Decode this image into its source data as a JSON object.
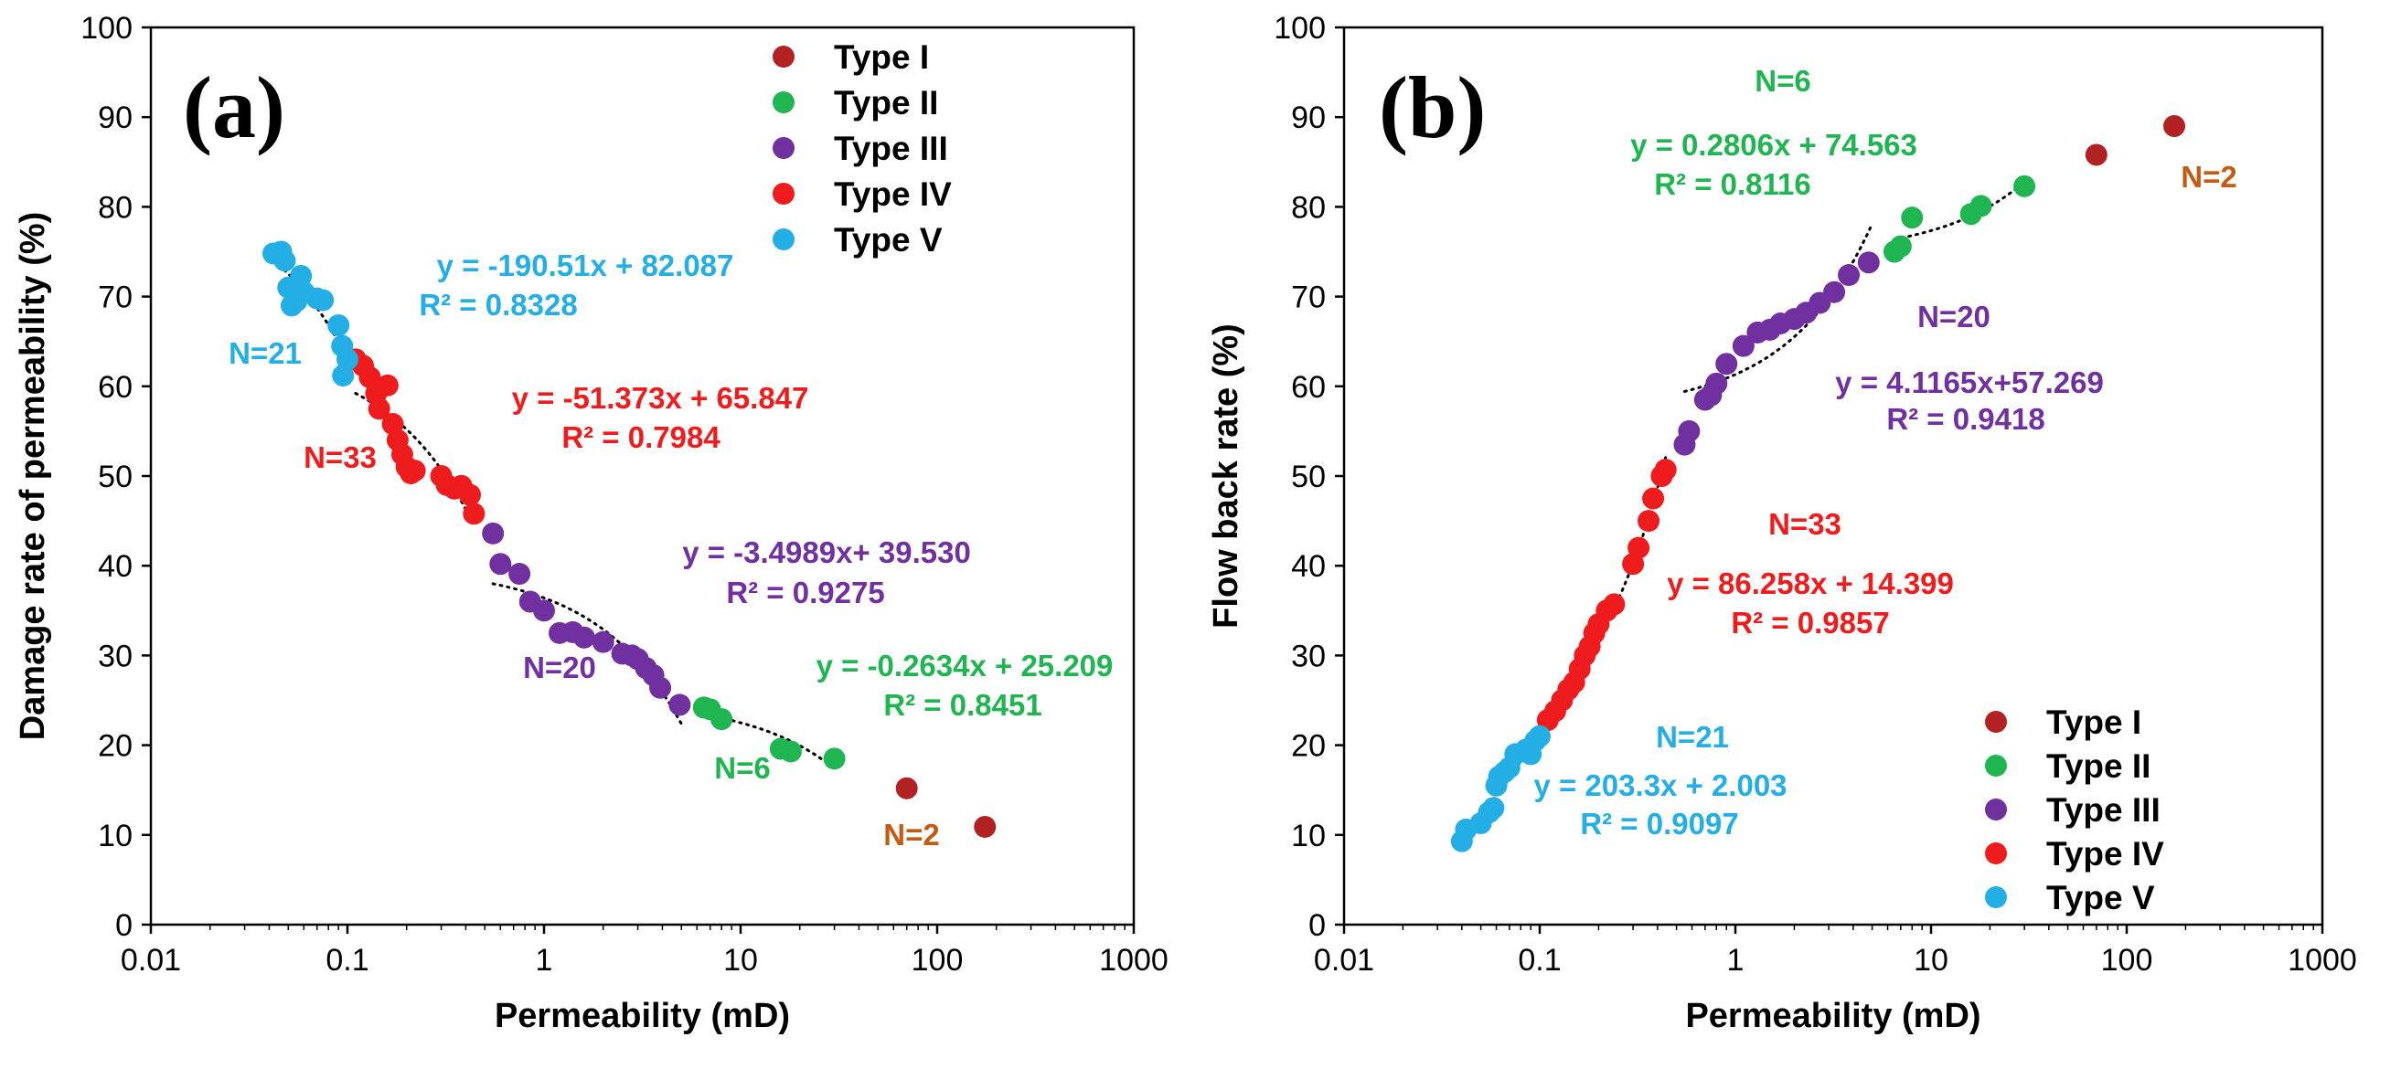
{
  "chart_data": [
    {
      "type": "scatter",
      "panel_label": "(a)",
      "xlabel": "Permeability (mD)",
      "ylabel": "Damage rate of permeability (%)",
      "xscale": "log",
      "xlim": [
        0.01,
        1000
      ],
      "ylim": [
        0,
        100
      ],
      "xticks": [
        0.01,
        0.1,
        1,
        10,
        100,
        1000
      ],
      "xtick_labels": [
        "0.01",
        "0.1",
        "1",
        "10",
        "100",
        "1000"
      ],
      "yticks": [
        0,
        10,
        20,
        30,
        40,
        50,
        60,
        70,
        80,
        90,
        100
      ],
      "ytick_labels": [
        "0",
        "10",
        "20",
        "30",
        "40",
        "50",
        "60",
        "70",
        "80",
        "90",
        "100"
      ],
      "legend_position": "top-right",
      "colors": {
        "Type I": "#b22222",
        "Type II": "#1fb550",
        "Type III": "#7030a0",
        "Type IV": "#ee1c1c",
        "Type V": "#23aee6"
      },
      "series": [
        {
          "name": "Type I",
          "points": [
            [
              70,
              15.2
            ],
            [
              175,
              10.9
            ]
          ]
        },
        {
          "name": "Type II",
          "points": [
            [
              6.5,
              24.2
            ],
            [
              7.0,
              24.0
            ],
            [
              8.0,
              22.9
            ],
            [
              16.0,
              19.6
            ],
            [
              18.0,
              19.3
            ],
            [
              30.0,
              18.5
            ]
          ]
        },
        {
          "name": "Type III",
          "points": [
            [
              0.55,
              43.6
            ],
            [
              0.6,
              40.2
            ],
            [
              0.75,
              39.1
            ],
            [
              0.85,
              36.0
            ],
            [
              1.0,
              35.0
            ],
            [
              1.2,
              32.5
            ],
            [
              1.4,
              32.6
            ],
            [
              1.6,
              32.0
            ],
            [
              2.0,
              31.5
            ],
            [
              2.5,
              30.2
            ],
            [
              2.8,
              30.0
            ],
            [
              3.0,
              29.6
            ],
            [
              3.3,
              28.6
            ],
            [
              3.6,
              27.8
            ],
            [
              3.9,
              26.4
            ],
            [
              4.9,
              24.5
            ]
          ]
        },
        {
          "name": "Type IV",
          "points": [
            [
              0.11,
              63.0
            ],
            [
              0.12,
              62.3
            ],
            [
              0.13,
              61.0
            ],
            [
              0.14,
              59.2
            ],
            [
              0.145,
              57.5
            ],
            [
              0.16,
              60.1
            ],
            [
              0.17,
              55.8
            ],
            [
              0.18,
              54.0
            ],
            [
              0.19,
              52.4
            ],
            [
              0.2,
              51.0
            ],
            [
              0.21,
              50.3
            ],
            [
              0.22,
              50.6
            ],
            [
              0.3,
              50.0
            ],
            [
              0.32,
              49.0
            ],
            [
              0.35,
              48.6
            ],
            [
              0.38,
              48.9
            ],
            [
              0.42,
              47.9
            ],
            [
              0.44,
              45.8
            ]
          ]
        },
        {
          "name": "Type V",
          "points": [
            [
              0.042,
              74.8
            ],
            [
              0.046,
              75.0
            ],
            [
              0.048,
              74.0
            ],
            [
              0.05,
              71.0
            ],
            [
              0.052,
              69.0
            ],
            [
              0.055,
              69.5
            ],
            [
              0.058,
              72.3
            ],
            [
              0.06,
              70.5
            ],
            [
              0.07,
              69.8
            ],
            [
              0.075,
              69.6
            ],
            [
              0.09,
              66.8
            ],
            [
              0.094,
              64.5
            ],
            [
              0.1,
              63.0
            ],
            [
              0.095,
              61.2
            ]
          ]
        }
      ],
      "trendlines": [
        {
          "series": "Type V",
          "equation": "y = -190.51x + 82.087",
          "r2": "R² = 0.8328",
          "n": "N=21",
          "x_range": [
            0.042,
            0.1
          ]
        },
        {
          "series": "Type IV",
          "equation": "y = -51.373x + 65.847",
          "r2": "R² = 0.7984",
          "n": "N=33",
          "x_range": [
            0.11,
            0.44
          ]
        },
        {
          "series": "Type III",
          "equation": "y = -3.4989x+ 39.530",
          "r2": "R² = 0.9275",
          "n": "N=20",
          "x_range": [
            0.55,
            5.0
          ]
        },
        {
          "series": "Type II",
          "equation": "y = -0.2634x + 25.209",
          "r2": "R² = 0.8451",
          "n": "N=6",
          "x_range": [
            6.5,
            30
          ]
        }
      ],
      "extra_labels": [
        {
          "series": "Type I",
          "text": "N=2"
        }
      ]
    },
    {
      "type": "scatter",
      "panel_label": "(b)",
      "xlabel": "Permeability (mD)",
      "ylabel": "Flow back rate (%)",
      "xscale": "log",
      "xlim": [
        0.01,
        1000
      ],
      "ylim": [
        0,
        100
      ],
      "xticks": [
        0.01,
        0.1,
        1,
        10,
        100,
        1000
      ],
      "xtick_labels": [
        "0.01",
        "0.1",
        "1",
        "10",
        "100",
        "1000"
      ],
      "yticks": [
        0,
        10,
        20,
        30,
        40,
        50,
        60,
        70,
        80,
        90,
        100
      ],
      "ytick_labels": [
        "0",
        "10",
        "20",
        "30",
        "40",
        "50",
        "60",
        "70",
        "80",
        "90",
        "100"
      ],
      "legend_position": "bottom-right",
      "colors": {
        "Type I": "#b22222",
        "Type II": "#1fb550",
        "Type III": "#7030a0",
        "Type IV": "#ee1c1c",
        "Type V": "#23aee6"
      },
      "series": [
        {
          "name": "Type I",
          "points": [
            [
              70,
              85.8
            ],
            [
              175,
              89.0
            ]
          ]
        },
        {
          "name": "Type II",
          "points": [
            [
              6.5,
              75.0
            ],
            [
              7.0,
              75.6
            ],
            [
              8.0,
              78.8
            ],
            [
              16.0,
              79.2
            ],
            [
              18.0,
              80.1
            ],
            [
              30.0,
              82.3
            ]
          ]
        },
        {
          "name": "Type III",
          "points": [
            [
              0.55,
              53.5
            ],
            [
              0.58,
              55.0
            ],
            [
              0.7,
              58.5
            ],
            [
              0.75,
              59.0
            ],
            [
              0.8,
              60.3
            ],
            [
              0.9,
              62.5
            ],
            [
              1.1,
              64.5
            ],
            [
              1.3,
              66.0
            ],
            [
              1.5,
              66.3
            ],
            [
              1.7,
              67.0
            ],
            [
              2.0,
              67.5
            ],
            [
              2.3,
              68.2
            ],
            [
              2.7,
              69.3
            ],
            [
              3.2,
              70.5
            ],
            [
              3.8,
              72.4
            ],
            [
              4.8,
              73.8
            ]
          ]
        },
        {
          "name": "Type IV",
          "points": [
            [
              0.11,
              22.8
            ],
            [
              0.12,
              23.8
            ],
            [
              0.13,
              25.0
            ],
            [
              0.14,
              26.2
            ],
            [
              0.15,
              27.0
            ],
            [
              0.16,
              28.5
            ],
            [
              0.17,
              30.0
            ],
            [
              0.18,
              31.0
            ],
            [
              0.19,
              32.5
            ],
            [
              0.2,
              33.5
            ],
            [
              0.22,
              35.0
            ],
            [
              0.24,
              35.7
            ],
            [
              0.3,
              40.2
            ],
            [
              0.32,
              42.0
            ],
            [
              0.36,
              45.0
            ],
            [
              0.38,
              47.5
            ],
            [
              0.42,
              50.0
            ],
            [
              0.44,
              50.7
            ]
          ]
        },
        {
          "name": "Type V",
          "points": [
            [
              0.04,
              9.3
            ],
            [
              0.042,
              10.6
            ],
            [
              0.05,
              11.3
            ],
            [
              0.055,
              12.5
            ],
            [
              0.058,
              13.0
            ],
            [
              0.06,
              15.5
            ],
            [
              0.062,
              16.5
            ],
            [
              0.066,
              17.0
            ],
            [
              0.07,
              17.5
            ],
            [
              0.075,
              19.0
            ],
            [
              0.085,
              19.5
            ],
            [
              0.09,
              19.0
            ],
            [
              0.095,
              20.5
            ],
            [
              0.1,
              21.0
            ]
          ]
        }
      ],
      "trendlines": [
        {
          "series": "Type II",
          "equation": "y = 0.2806x + 74.563",
          "r2": "R² = 0.8116",
          "n": "N=6",
          "x_range": [
            6.5,
            30
          ]
        },
        {
          "series": "Type III",
          "equation": "y = 4.1165x+57.269",
          "r2": "R² = 0.9418",
          "n": "N=20",
          "x_range": [
            0.55,
            5.0
          ]
        },
        {
          "series": "Type IV",
          "equation": "y = 86.258x + 14.399",
          "r2": "R² = 0.9857",
          "n": "N=33",
          "x_range": [
            0.11,
            0.44
          ]
        },
        {
          "series": "Type V",
          "equation": "y = 203.3x + 2.003",
          "r2": "R² = 0.9097",
          "n": "N=21",
          "x_range": [
            0.04,
            0.1
          ]
        }
      ],
      "extra_labels": [
        {
          "series": "Type I",
          "text": "N=2"
        }
      ]
    }
  ]
}
